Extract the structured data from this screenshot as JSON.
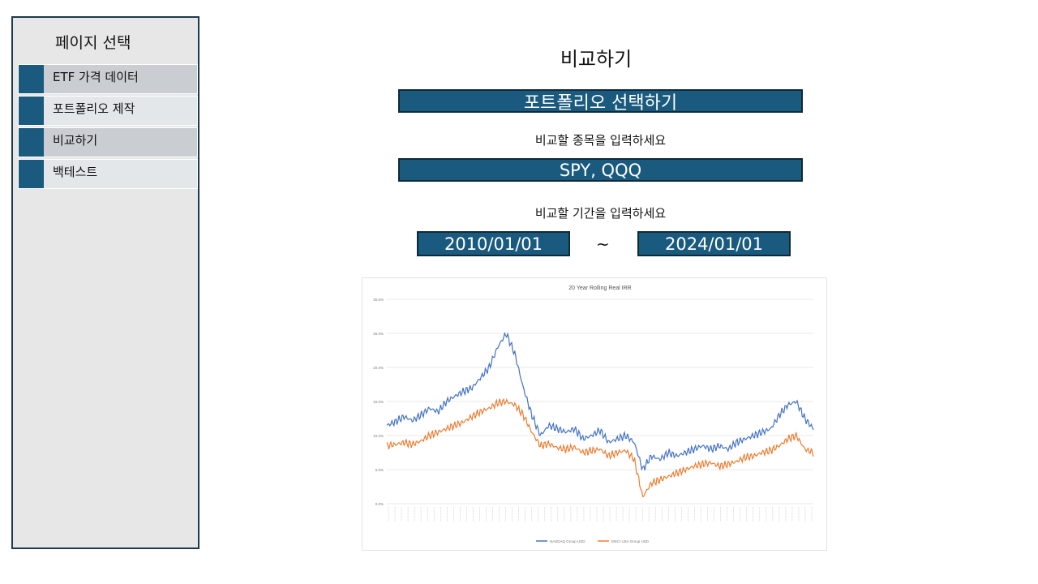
{
  "sidebar": {
    "title": "페이지 선택",
    "items": [
      {
        "label": "ETF 가격 데이터",
        "active": true
      },
      {
        "label": "포트폴리오 제작",
        "active": false
      },
      {
        "label": "비교하기",
        "active": true
      },
      {
        "label": "백테스트",
        "active": false
      }
    ]
  },
  "main": {
    "title": "비교하기",
    "portfolio_select_label": "포트폴리오 선택하기",
    "ticker_prompt": "비교할 종목을 입력하세요",
    "ticker_value": "SPY, QQQ",
    "period_prompt": "비교할 기간을 입력하세요",
    "start_date": "2010/01/01",
    "period_separator": "~",
    "end_date": "2024/01/01"
  },
  "colors": {
    "accent": "#1a5a7e",
    "sidebar_bg": "#e7e7e7",
    "series_blue": "#4472c4",
    "series_orange": "#ed7d31"
  },
  "chart_data": {
    "type": "line",
    "title": "20 Year Rolling Real IRR",
    "ylim": [
      0,
      30
    ],
    "y_ticks": [
      "30.0%",
      "25.0%",
      "20.0%",
      "15.0%",
      "10.0%",
      "5.0%",
      "0.0%"
    ],
    "grid": true,
    "legend_position": "bottom",
    "series": [
      {
        "name": "NASDAQ Group USD",
        "values": [
          11.5,
          12.0,
          12.8,
          12.2,
          13.0,
          14.0,
          13.5,
          15.0,
          15.8,
          16.5,
          17.0,
          18.5,
          20.0,
          23.0,
          25.0,
          22.0,
          17.0,
          13.0,
          10.0,
          11.5,
          11.0,
          10.5,
          11.0,
          9.5,
          10.0,
          10.8,
          9.0,
          9.5,
          10.0,
          9.0,
          5.0,
          7.0,
          6.5,
          7.5,
          7.0,
          7.5,
          8.0,
          8.5,
          8.0,
          8.5,
          8.0,
          9.0,
          9.5,
          10.0,
          10.5,
          11.0,
          13.0,
          14.5,
          15.0,
          12.5,
          11.0
        ]
      },
      {
        "name": "MSCI USA Group USD",
        "values": [
          8.5,
          8.7,
          9.0,
          8.7,
          9.2,
          10.0,
          10.5,
          11.0,
          11.5,
          12.0,
          12.8,
          13.5,
          14.0,
          14.8,
          15.0,
          14.5,
          13.0,
          10.5,
          8.5,
          8.8,
          8.2,
          8.0,
          8.3,
          7.5,
          7.8,
          8.0,
          7.0,
          7.5,
          7.8,
          6.5,
          1.0,
          3.0,
          3.5,
          4.0,
          4.5,
          5.0,
          5.5,
          5.8,
          6.0,
          5.5,
          5.8,
          6.2,
          6.8,
          7.0,
          7.5,
          7.8,
          8.5,
          9.5,
          10.0,
          8.0,
          7.5
        ]
      }
    ]
  }
}
